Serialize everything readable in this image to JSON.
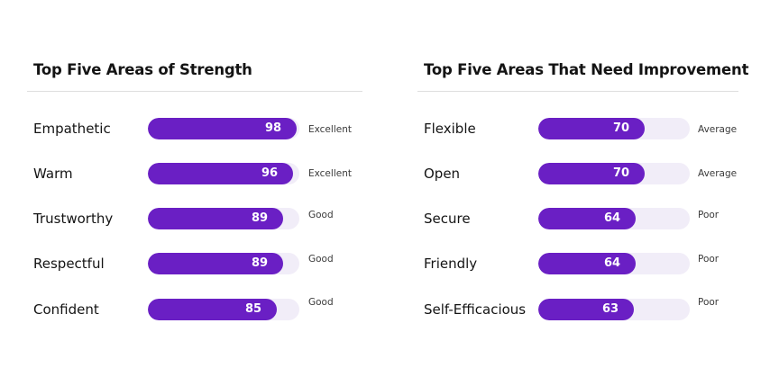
{
  "colors": {
    "bar_fill": "#6a1fc4",
    "bar_track": "#f1edf8",
    "divider": "#dedede",
    "text": "#141414"
  },
  "chart_data": [
    {
      "type": "bar",
      "orientation": "horizontal",
      "title": "Top Five Areas of Strength",
      "xlim": [
        0,
        100
      ],
      "categories": [
        "Empathetic",
        "Warm",
        "Trustworthy",
        "Respectful",
        "Confident"
      ],
      "values": [
        98,
        96,
        89,
        89,
        85
      ],
      "ratings": [
        "Excellent",
        "Excellent",
        "Good",
        "Good",
        "Good"
      ],
      "grid": false
    },
    {
      "type": "bar",
      "orientation": "horizontal",
      "title": "Top Five Areas That Need Improvement",
      "xlim": [
        0,
        100
      ],
      "categories": [
        "Flexible",
        "Open",
        "Secure",
        "Friendly",
        "Self-Efficacious"
      ],
      "values": [
        70,
        70,
        64,
        64,
        63
      ],
      "ratings": [
        "Average",
        "Average",
        "Poor",
        "Poor",
        "Poor"
      ],
      "grid": false
    }
  ]
}
